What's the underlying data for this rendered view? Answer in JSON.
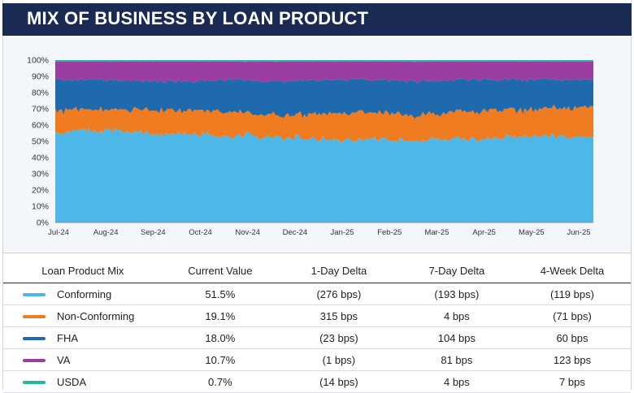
{
  "header": {
    "title": "MIX OF BUSINESS BY LOAN PRODUCT"
  },
  "chart_data": {
    "type": "area",
    "stacked": true,
    "normalized": true,
    "x_labels": [
      "Jul-24",
      "Aug-24",
      "Sep-24",
      "Oct-24",
      "Nov-24",
      "Dec-24",
      "Jan-25",
      "Feb-25",
      "Mar-25",
      "Apr-25",
      "May-25",
      "Jun-25"
    ],
    "y_ticks": [
      "0%",
      "10%",
      "20%",
      "30%",
      "40%",
      "50%",
      "60%",
      "70%",
      "80%",
      "90%",
      "100%"
    ],
    "ylim": [
      0,
      100
    ],
    "grid": false,
    "legend": "none",
    "series": [
      {
        "color": "#4db8e8",
        "values": [
          55,
          57,
          55,
          54,
          53,
          52,
          51,
          51,
          50,
          51,
          52,
          53,
          52
        ]
      },
      {
        "color": "#f07c21",
        "values": [
          14,
          13,
          14,
          15,
          15,
          14,
          16,
          17,
          16,
          17,
          17,
          17,
          19
        ]
      },
      {
        "color": "#1f6aad",
        "values": [
          19,
          18,
          18,
          18,
          20,
          21,
          21,
          20,
          21,
          20,
          19,
          18,
          17
        ]
      },
      {
        "color": "#9b3ea0",
        "values": [
          11,
          11,
          12,
          12,
          11,
          12,
          11,
          11,
          12,
          11,
          11,
          11,
          11
        ]
      },
      {
        "color": "#2bb5a0",
        "values": [
          1,
          1,
          1,
          1,
          1,
          1,
          1,
          1,
          1,
          1,
          1,
          1,
          1
        ]
      }
    ]
  },
  "table": {
    "headers": [
      "Loan Product Mix",
      "Current Value",
      "1-Day Delta",
      "7-Day Delta",
      "4-Week Delta"
    ],
    "rows": [
      {
        "product": "Conforming",
        "color": "#4db8e8",
        "current": "51.5%",
        "d1": "(276 bps)",
        "d7": "(193 bps)",
        "w4": "(119 bps)"
      },
      {
        "product": "Non-Conforming",
        "color": "#f07c21",
        "current": "19.1%",
        "d1": "315 bps",
        "d7": "4 bps",
        "w4": "(71 bps)"
      },
      {
        "product": "FHA",
        "color": "#1f6aad",
        "current": "18.0%",
        "d1": "(23 bps)",
        "d7": "104 bps",
        "w4": "60 bps"
      },
      {
        "product": "VA",
        "color": "#9b3ea0",
        "current": "10.7%",
        "d1": "(1 bps)",
        "d7": "81 bps",
        "w4": "123 bps"
      },
      {
        "product": "USDA",
        "color": "#2bb5a0",
        "current": "0.7%",
        "d1": "(14 bps)",
        "d7": "4 bps",
        "w4": "7 bps"
      }
    ]
  }
}
